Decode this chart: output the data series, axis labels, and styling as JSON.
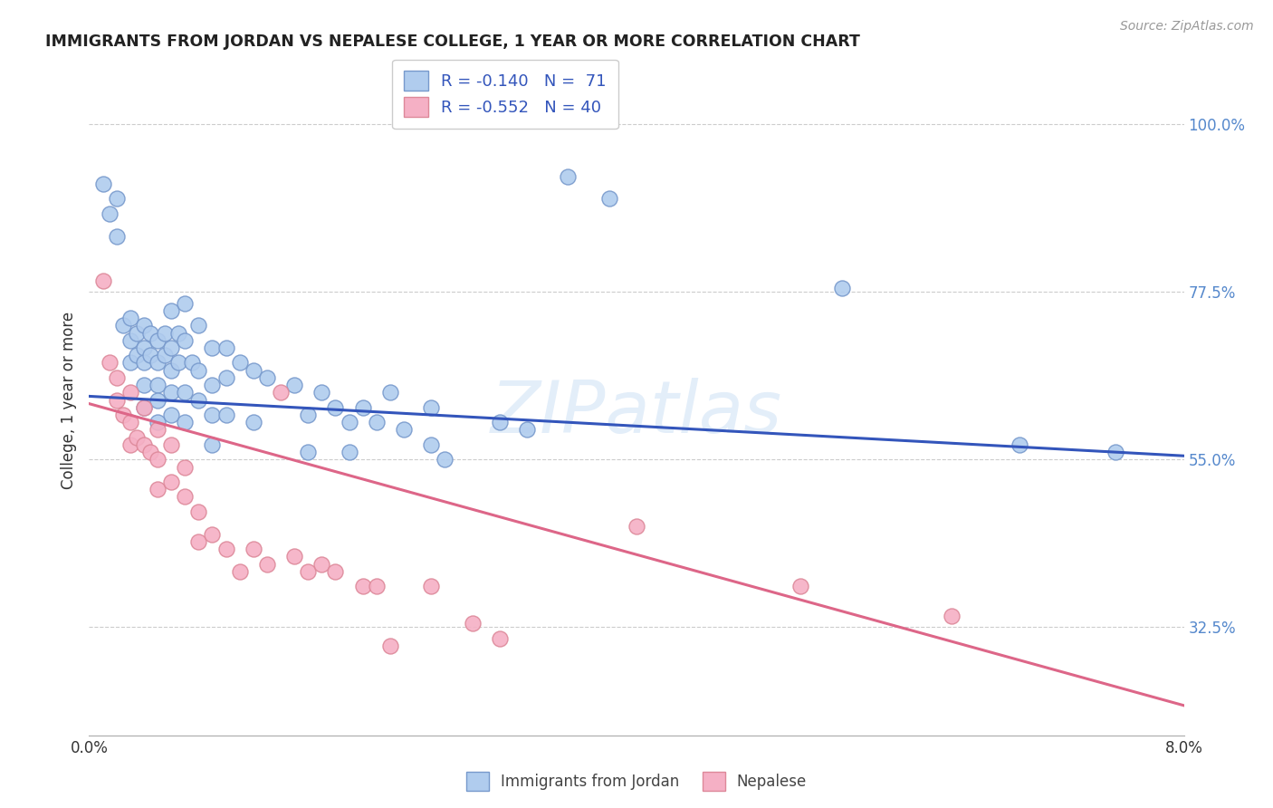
{
  "title": "IMMIGRANTS FROM JORDAN VS NEPALESE COLLEGE, 1 YEAR OR MORE CORRELATION CHART",
  "source": "Source: ZipAtlas.com",
  "ylabel": "College, 1 year or more",
  "watermark": "ZIPatlas",
  "legend_entries": [
    {
      "label": "Immigrants from Jordan",
      "R": "-0.140",
      "N": "71",
      "color": "#a8c4e0"
    },
    {
      "label": "Nepalese",
      "R": "-0.552",
      "N": "40",
      "color": "#f4a8b8"
    }
  ],
  "y_ticks": [
    0.325,
    0.55,
    0.775,
    1.0
  ],
  "y_tick_labels": [
    "32.5%",
    "55.0%",
    "77.5%",
    "100.0%"
  ],
  "xlim": [
    0.0,
    0.08
  ],
  "ylim": [
    0.18,
    1.08
  ],
  "blue_points": [
    [
      0.001,
      0.92
    ],
    [
      0.0015,
      0.88
    ],
    [
      0.002,
      0.9
    ],
    [
      0.002,
      0.85
    ],
    [
      0.0025,
      0.73
    ],
    [
      0.003,
      0.74
    ],
    [
      0.003,
      0.71
    ],
    [
      0.003,
      0.68
    ],
    [
      0.0035,
      0.72
    ],
    [
      0.0035,
      0.69
    ],
    [
      0.004,
      0.73
    ],
    [
      0.004,
      0.7
    ],
    [
      0.004,
      0.68
    ],
    [
      0.004,
      0.65
    ],
    [
      0.004,
      0.62
    ],
    [
      0.0045,
      0.72
    ],
    [
      0.0045,
      0.69
    ],
    [
      0.005,
      0.71
    ],
    [
      0.005,
      0.68
    ],
    [
      0.005,
      0.65
    ],
    [
      0.005,
      0.63
    ],
    [
      0.005,
      0.6
    ],
    [
      0.0055,
      0.72
    ],
    [
      0.0055,
      0.69
    ],
    [
      0.006,
      0.75
    ],
    [
      0.006,
      0.7
    ],
    [
      0.006,
      0.67
    ],
    [
      0.006,
      0.64
    ],
    [
      0.006,
      0.61
    ],
    [
      0.0065,
      0.72
    ],
    [
      0.0065,
      0.68
    ],
    [
      0.007,
      0.76
    ],
    [
      0.007,
      0.71
    ],
    [
      0.007,
      0.64
    ],
    [
      0.007,
      0.6
    ],
    [
      0.0075,
      0.68
    ],
    [
      0.008,
      0.73
    ],
    [
      0.008,
      0.67
    ],
    [
      0.008,
      0.63
    ],
    [
      0.009,
      0.7
    ],
    [
      0.009,
      0.65
    ],
    [
      0.009,
      0.61
    ],
    [
      0.009,
      0.57
    ],
    [
      0.01,
      0.7
    ],
    [
      0.01,
      0.66
    ],
    [
      0.01,
      0.61
    ],
    [
      0.011,
      0.68
    ],
    [
      0.012,
      0.67
    ],
    [
      0.012,
      0.6
    ],
    [
      0.013,
      0.66
    ],
    [
      0.015,
      0.65
    ],
    [
      0.016,
      0.61
    ],
    [
      0.016,
      0.56
    ],
    [
      0.017,
      0.64
    ],
    [
      0.018,
      0.62
    ],
    [
      0.019,
      0.6
    ],
    [
      0.019,
      0.56
    ],
    [
      0.02,
      0.62
    ],
    [
      0.021,
      0.6
    ],
    [
      0.022,
      0.64
    ],
    [
      0.023,
      0.59
    ],
    [
      0.025,
      0.62
    ],
    [
      0.025,
      0.57
    ],
    [
      0.026,
      0.55
    ],
    [
      0.03,
      0.6
    ],
    [
      0.032,
      0.59
    ],
    [
      0.035,
      0.93
    ],
    [
      0.038,
      0.9
    ],
    [
      0.055,
      0.78
    ],
    [
      0.068,
      0.57
    ],
    [
      0.075,
      0.56
    ]
  ],
  "pink_points": [
    [
      0.001,
      0.79
    ],
    [
      0.0015,
      0.68
    ],
    [
      0.002,
      0.66
    ],
    [
      0.002,
      0.63
    ],
    [
      0.0025,
      0.61
    ],
    [
      0.003,
      0.64
    ],
    [
      0.003,
      0.6
    ],
    [
      0.003,
      0.57
    ],
    [
      0.0035,
      0.58
    ],
    [
      0.004,
      0.62
    ],
    [
      0.004,
      0.57
    ],
    [
      0.0045,
      0.56
    ],
    [
      0.005,
      0.59
    ],
    [
      0.005,
      0.55
    ],
    [
      0.005,
      0.51
    ],
    [
      0.006,
      0.57
    ],
    [
      0.006,
      0.52
    ],
    [
      0.007,
      0.54
    ],
    [
      0.007,
      0.5
    ],
    [
      0.008,
      0.48
    ],
    [
      0.008,
      0.44
    ],
    [
      0.009,
      0.45
    ],
    [
      0.01,
      0.43
    ],
    [
      0.011,
      0.4
    ],
    [
      0.012,
      0.43
    ],
    [
      0.013,
      0.41
    ],
    [
      0.014,
      0.64
    ],
    [
      0.015,
      0.42
    ],
    [
      0.016,
      0.4
    ],
    [
      0.017,
      0.41
    ],
    [
      0.018,
      0.4
    ],
    [
      0.02,
      0.38
    ],
    [
      0.021,
      0.38
    ],
    [
      0.022,
      0.3
    ],
    [
      0.025,
      0.38
    ],
    [
      0.028,
      0.33
    ],
    [
      0.03,
      0.31
    ],
    [
      0.04,
      0.46
    ],
    [
      0.052,
      0.38
    ],
    [
      0.063,
      0.34
    ]
  ],
  "blue_line_x": [
    0.0,
    0.08
  ],
  "blue_line_y": [
    0.635,
    0.555
  ],
  "pink_line_x": [
    0.0,
    0.08
  ],
  "pink_line_y": [
    0.625,
    0.22
  ],
  "blue_line_color": "#3355bb",
  "pink_line_color": "#dd6688",
  "blue_scatter_color": "#b0ccee",
  "pink_scatter_color": "#f5b0c5",
  "blue_scatter_edge": "#7799cc",
  "pink_scatter_edge": "#dd8899",
  "grid_color": "#cccccc",
  "background_color": "#ffffff",
  "right_axis_color": "#5588cc"
}
